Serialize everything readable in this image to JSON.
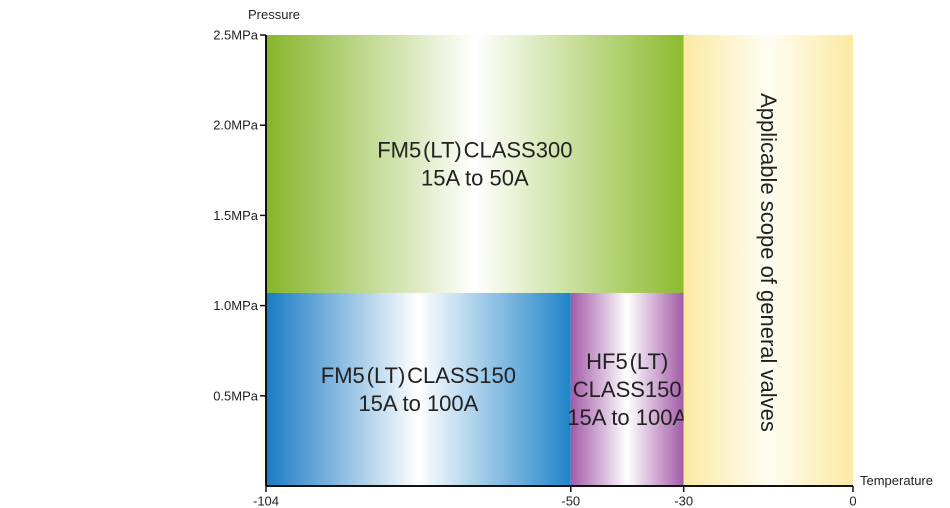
{
  "chart_data": {
    "type": "area",
    "title": "",
    "xlabel": "Temperature",
    "ylabel": "Pressure",
    "xlim": [
      -104,
      0
    ],
    "ylim": [
      0,
      2.5
    ],
    "x_ticks": [
      {
        "value": -104,
        "label": "-104"
      },
      {
        "value": -50,
        "label": "-50"
      },
      {
        "value": -30,
        "label": "-30"
      },
      {
        "value": 0,
        "label": "0"
      }
    ],
    "y_ticks": [
      {
        "value": 0.5,
        "label": "0.5MPa"
      },
      {
        "value": 1.0,
        "label": "1.0MPa"
      },
      {
        "value": 1.5,
        "label": "1.5MPa"
      },
      {
        "value": 2.0,
        "label": "2.0MPa"
      },
      {
        "value": 2.5,
        "label": "2.5MPa"
      }
    ],
    "regions": [
      {
        "id": "fm5-class300",
        "lines": [
          "FM5 (LT) CLASS300",
          "15A to 50A"
        ],
        "x": [
          -104,
          -30
        ],
        "y": [
          1.07,
          2.5
        ],
        "gradient": [
          "#86b52a",
          "#ffffff",
          "#8cbb2e"
        ],
        "text_orientation": "horizontal"
      },
      {
        "id": "fm5-class150",
        "lines": [
          "FM5 (LT) CLASS150",
          "15A to 100A"
        ],
        "x": [
          -104,
          -50
        ],
        "y": [
          0,
          1.07
        ],
        "gradient": [
          "#1a7bc4",
          "#ffffff",
          "#1f84c9"
        ],
        "text_orientation": "horizontal"
      },
      {
        "id": "hf5-class150",
        "lines": [
          "HF5 (LT)",
          "CLASS150",
          "15A to 100A"
        ],
        "x": [
          -50,
          -30
        ],
        "y": [
          0,
          1.07
        ],
        "gradient": [
          "#a35aa8",
          "#ffffff",
          "#a35aa8"
        ],
        "text_orientation": "horizontal"
      },
      {
        "id": "general-valves",
        "lines": [
          "Applicable scope of general valves"
        ],
        "x": [
          -30,
          0
        ],
        "y": [
          0,
          2.5
        ],
        "gradient": [
          "#fbe9a2",
          "#fffdf3",
          "#fbe9a2"
        ],
        "text_orientation": "vertical"
      }
    ],
    "grid": false,
    "legend": "none"
  }
}
